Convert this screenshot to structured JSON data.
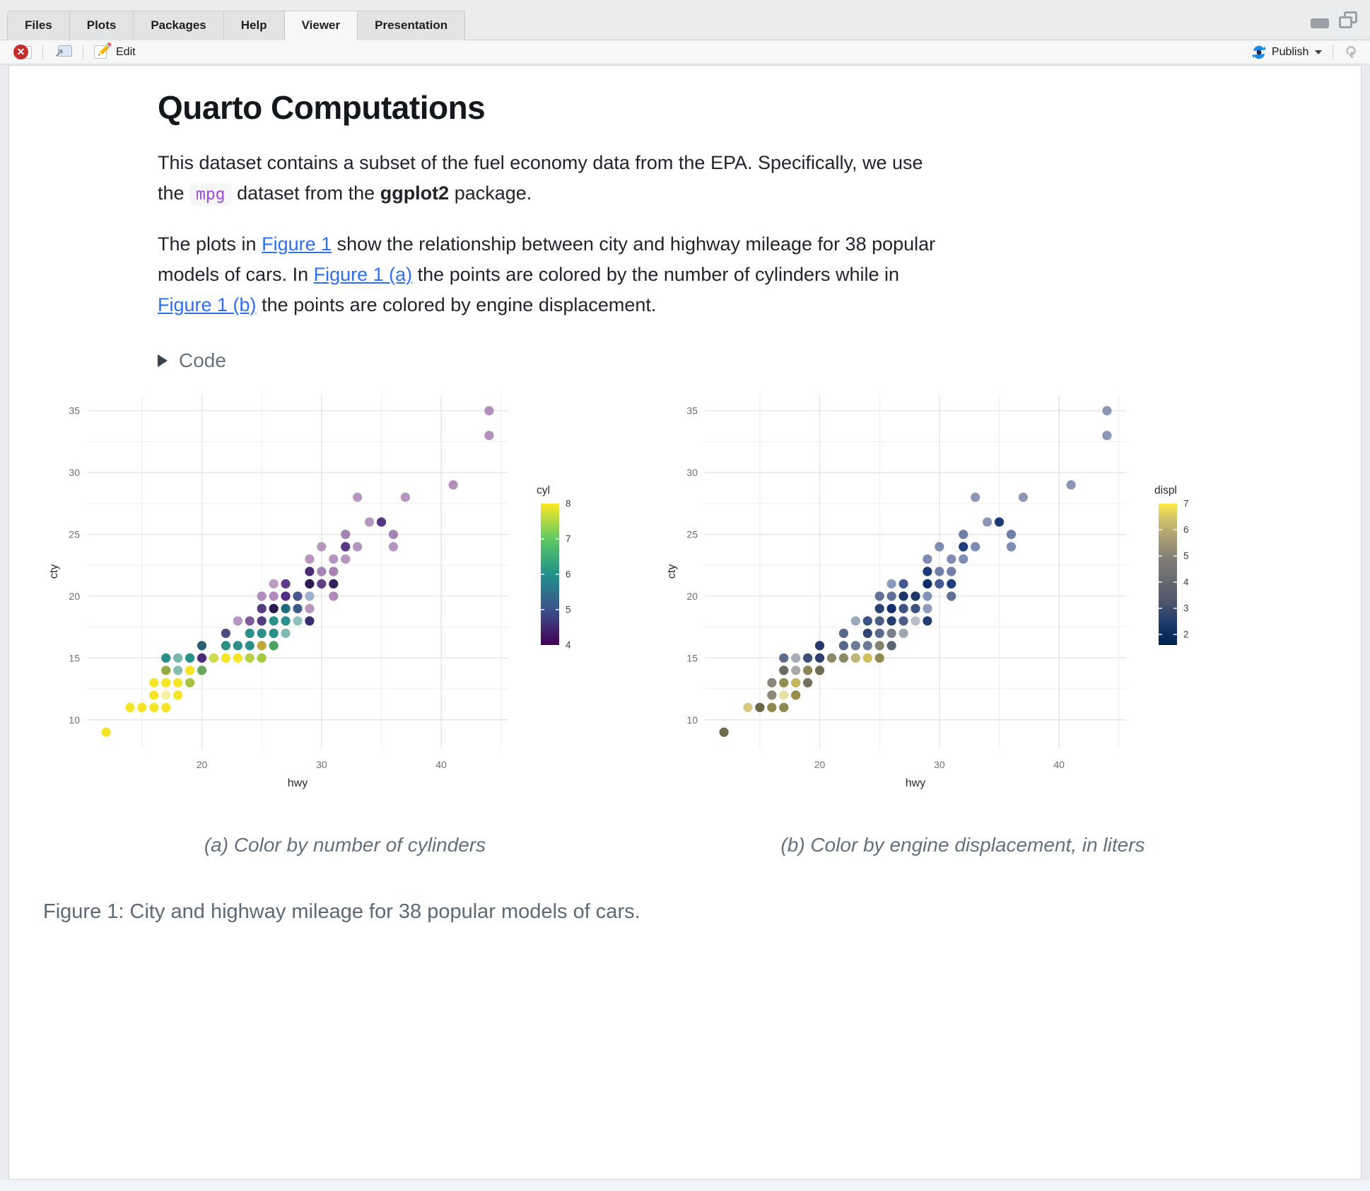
{
  "window": {
    "tabs": [
      {
        "label": "Files"
      },
      {
        "label": "Plots"
      },
      {
        "label": "Packages"
      },
      {
        "label": "Help"
      },
      {
        "label": "Viewer"
      },
      {
        "label": "Presentation"
      }
    ],
    "active_tab": "Viewer",
    "toolbar": {
      "edit_label": "Edit",
      "publish_label": "Publish"
    }
  },
  "document": {
    "title": "Quarto Computations",
    "para1": [
      {
        "t": "This dataset contains a subset of the fuel economy data from the EPA. Specifically, we use the "
      },
      {
        "t": "mpg",
        "s": "code"
      },
      {
        "t": " dataset from the "
      },
      {
        "t": "ggplot2",
        "s": "bold"
      },
      {
        "t": " package."
      }
    ],
    "para2": [
      {
        "t": "The plots in "
      },
      {
        "t": "Figure 1",
        "s": "link"
      },
      {
        "t": " show the relationship between city and highway mileage for 38 popular models of cars. In "
      },
      {
        "t": "Figure 1 (a)",
        "s": "link"
      },
      {
        "t": " the points are colored by the number of cylinders while in "
      },
      {
        "t": "Figure 1 (b)",
        "s": "link"
      },
      {
        "t": " the points are colored by engine displacement."
      }
    ],
    "code_toggle": "Code",
    "caption_a": "(a) Color by number of cylinders",
    "caption_b": "(b) Color by engine displacement, in liters",
    "figure_caption": "Figure 1: City and highway mileage for 38 popular models of cars."
  },
  "chart_data": [
    {
      "type": "scatter",
      "xlabel": "hwy",
      "ylabel": "cty",
      "xlim": [
        10.4,
        45.6
      ],
      "ylim": [
        7.7,
        36.3
      ],
      "x_major": [
        20,
        30,
        40
      ],
      "x_minor": [
        15,
        25,
        35,
        45
      ],
      "y_major": [
        10,
        15,
        20,
        25,
        30,
        35
      ],
      "y_minor": [
        12.5,
        17.5,
        22.5,
        27.5,
        32.5
      ],
      "legend": {
        "title": "cyl",
        "range": [
          4,
          8
        ],
        "ticks": [
          8,
          7,
          6,
          5,
          4
        ],
        "gradient": [
          [
            0,
            "#440154"
          ],
          [
            0.25,
            "#3b528b"
          ],
          [
            0.5,
            "#21918c"
          ],
          [
            0.75,
            "#5ec962"
          ],
          [
            1,
            "#fde725"
          ]
        ]
      },
      "points": [
        [
          12,
          9,
          "#f6e526"
        ],
        [
          14,
          11,
          "#f6e526"
        ],
        [
          15,
          11,
          "#f6e526"
        ],
        [
          16,
          11,
          "#f6e526"
        ],
        [
          17,
          11,
          "#f6e526"
        ],
        [
          16,
          12,
          "#f6e526"
        ],
        [
          17,
          12,
          "#faf0a3"
        ],
        [
          18,
          12,
          "#f6e526"
        ],
        [
          16,
          13,
          "#f6e526"
        ],
        [
          17,
          13,
          "#f6e526"
        ],
        [
          18,
          13,
          "#f6e526"
        ],
        [
          19,
          13,
          "#a8c243"
        ],
        [
          17,
          14,
          "#93ac41"
        ],
        [
          18,
          14,
          "#86bcb2"
        ],
        [
          19,
          14,
          "#f6e526"
        ],
        [
          20,
          14,
          "#6aa85c"
        ],
        [
          17,
          15,
          "#2a9088"
        ],
        [
          18,
          15,
          "#7cb7ae"
        ],
        [
          19,
          15,
          "#2a9088"
        ],
        [
          20,
          15,
          "#4a2c7b"
        ],
        [
          21,
          15,
          "#cdd94e"
        ],
        [
          22,
          15,
          "#f6e526"
        ],
        [
          23,
          15,
          "#f6e526"
        ],
        [
          24,
          15,
          "#b6d046"
        ],
        [
          25,
          15,
          "#a6c943"
        ],
        [
          20,
          16,
          "#2b5f72"
        ],
        [
          22,
          16,
          "#2a9088"
        ],
        [
          23,
          16,
          "#2a9088"
        ],
        [
          24,
          16,
          "#2a9088"
        ],
        [
          25,
          16,
          "#c0a83e"
        ],
        [
          26,
          16,
          "#4aa35e"
        ],
        [
          22,
          17,
          "#4a4e80"
        ],
        [
          24,
          17,
          "#2a9088"
        ],
        [
          25,
          17,
          "#2a9088"
        ],
        [
          26,
          17,
          "#2a9088"
        ],
        [
          27,
          17,
          "#82b9b0"
        ],
        [
          23,
          18,
          "#b696bf"
        ],
        [
          24,
          18,
          "#7d5a9a"
        ],
        [
          25,
          18,
          "#4f3d7e"
        ],
        [
          26,
          18,
          "#2a9088"
        ],
        [
          27,
          18,
          "#2a9088"
        ],
        [
          28,
          18,
          "#8fc2ba"
        ],
        [
          29,
          18,
          "#3a2f6d"
        ],
        [
          25,
          19,
          "#513a80"
        ],
        [
          26,
          19,
          "#2d1a52"
        ],
        [
          27,
          19,
          "#1f6b7c"
        ],
        [
          28,
          19,
          "#3d5a89"
        ],
        [
          29,
          19,
          "#b696bf"
        ],
        [
          25,
          20,
          "#b08cba"
        ],
        [
          26,
          20,
          "#b08cba"
        ],
        [
          27,
          20,
          "#552d80"
        ],
        [
          28,
          20,
          "#48568e"
        ],
        [
          29,
          20,
          "#9fb0cf"
        ],
        [
          31,
          20,
          "#b08cba"
        ],
        [
          26,
          21,
          "#bb9cc4"
        ],
        [
          27,
          21,
          "#5f3d88"
        ],
        [
          29,
          21,
          "#2d1a52"
        ],
        [
          30,
          21,
          "#5f3d88"
        ],
        [
          31,
          21,
          "#33205e"
        ],
        [
          29,
          22,
          "#4a2d75"
        ],
        [
          30,
          22,
          "#a584b3"
        ],
        [
          31,
          22,
          "#a584b3"
        ],
        [
          29,
          23,
          "#b696bf"
        ],
        [
          31,
          23,
          "#b696bf"
        ],
        [
          32,
          23,
          "#b696bf"
        ],
        [
          30,
          24,
          "#b696bf"
        ],
        [
          32,
          24,
          "#5b3a85"
        ],
        [
          33,
          24,
          "#b696bf"
        ],
        [
          36,
          24,
          "#b696bf"
        ],
        [
          32,
          25,
          "#a584b3"
        ],
        [
          36,
          25,
          "#a584b3"
        ],
        [
          34,
          26,
          "#b696bf"
        ],
        [
          35,
          26,
          "#563482"
        ],
        [
          33,
          28,
          "#b696bf"
        ],
        [
          37,
          28,
          "#b696bf"
        ],
        [
          41,
          29,
          "#b28fbc"
        ],
        [
          44,
          33,
          "#b28fbc"
        ],
        [
          44,
          35,
          "#b28fbc"
        ]
      ]
    },
    {
      "type": "scatter",
      "xlabel": "hwy",
      "ylabel": "cty",
      "xlim": [
        10.4,
        45.6
      ],
      "ylim": [
        7.7,
        36.3
      ],
      "x_major": [
        20,
        30,
        40
      ],
      "x_minor": [
        15,
        25,
        35,
        45
      ],
      "y_major": [
        10,
        15,
        20,
        25,
        30,
        35
      ],
      "y_minor": [
        12.5,
        17.5,
        22.5,
        27.5,
        32.5
      ],
      "legend": {
        "title": "displ",
        "range": [
          1.6,
          7
        ],
        "ticks": [
          7,
          6,
          5,
          4,
          3,
          2
        ],
        "gradient": [
          [
            0,
            "#00204d"
          ],
          [
            0.15,
            "#1b3a6d"
          ],
          [
            0.3,
            "#4c556b"
          ],
          [
            0.45,
            "#666970"
          ],
          [
            0.6,
            "#7f7c75"
          ],
          [
            0.75,
            "#a69d75"
          ],
          [
            0.9,
            "#d3c368"
          ],
          [
            1,
            "#ffea46"
          ]
        ]
      },
      "points": [
        [
          12,
          9,
          "#6e6a4a"
        ],
        [
          14,
          11,
          "#d6ca82"
        ],
        [
          15,
          11,
          "#6b6747"
        ],
        [
          16,
          11,
          "#8f884f"
        ],
        [
          17,
          11,
          "#8f884f"
        ],
        [
          16,
          12,
          "#8c8a77"
        ],
        [
          17,
          12,
          "#eadfa4"
        ],
        [
          18,
          12,
          "#968e4e"
        ],
        [
          16,
          13,
          "#8b897b"
        ],
        [
          17,
          13,
          "#948c51"
        ],
        [
          18,
          13,
          "#c3b55e"
        ],
        [
          19,
          13,
          "#73705d"
        ],
        [
          17,
          14,
          "#6c6a5e"
        ],
        [
          18,
          14,
          "#a7a9a6"
        ],
        [
          19,
          14,
          "#8a8457"
        ],
        [
          20,
          14,
          "#6f6c52"
        ],
        [
          17,
          15,
          "#5d6d89"
        ],
        [
          18,
          15,
          "#a8aeb7"
        ],
        [
          19,
          15,
          "#3d4e78"
        ],
        [
          20,
          15,
          "#2c3f6b"
        ],
        [
          21,
          15,
          "#8d8a67"
        ],
        [
          22,
          15,
          "#8d8a67"
        ],
        [
          23,
          15,
          "#bfb677"
        ],
        [
          24,
          15,
          "#cfc25e"
        ],
        [
          25,
          15,
          "#918a50"
        ],
        [
          20,
          16,
          "#24386b"
        ],
        [
          22,
          16,
          "#57678c"
        ],
        [
          23,
          16,
          "#6c7a94"
        ],
        [
          24,
          16,
          "#6c7a94"
        ],
        [
          25,
          16,
          "#83836f"
        ],
        [
          26,
          16,
          "#5b6475"
        ],
        [
          22,
          17,
          "#5a6a8a"
        ],
        [
          24,
          17,
          "#2e4571"
        ],
        [
          25,
          17,
          "#5a6a8a"
        ],
        [
          26,
          17,
          "#787f8d"
        ],
        [
          27,
          17,
          "#9fa6ad"
        ],
        [
          23,
          18,
          "#9ba7bb"
        ],
        [
          24,
          18,
          "#3b5283"
        ],
        [
          25,
          18,
          "#4c5d86"
        ],
        [
          26,
          18,
          "#253e72"
        ],
        [
          27,
          18,
          "#4c5d86"
        ],
        [
          28,
          18,
          "#b9bec5"
        ],
        [
          29,
          18,
          "#253e72"
        ],
        [
          25,
          19,
          "#2c4272"
        ],
        [
          26,
          19,
          "#14306b"
        ],
        [
          27,
          19,
          "#3d5280"
        ],
        [
          28,
          19,
          "#3d5280"
        ],
        [
          29,
          19,
          "#8f9dba"
        ],
        [
          25,
          20,
          "#63719a"
        ],
        [
          26,
          20,
          "#63719a"
        ],
        [
          27,
          20,
          "#1d3569"
        ],
        [
          28,
          20,
          "#1d3569"
        ],
        [
          29,
          20,
          "#8493b5"
        ],
        [
          31,
          20,
          "#63719a"
        ],
        [
          26,
          21,
          "#8b99c0"
        ],
        [
          27,
          21,
          "#455a92"
        ],
        [
          29,
          21,
          "#0f2d68"
        ],
        [
          30,
          21,
          "#455a92"
        ],
        [
          31,
          21,
          "#1e3d7e"
        ],
        [
          29,
          22,
          "#1c3c77"
        ],
        [
          30,
          22,
          "#6f7ea6"
        ],
        [
          31,
          22,
          "#6f7ea6"
        ],
        [
          29,
          23,
          "#7d8cb0"
        ],
        [
          31,
          23,
          "#7d8cb0"
        ],
        [
          32,
          23,
          "#7d8cb0"
        ],
        [
          30,
          24,
          "#7d8cb0"
        ],
        [
          32,
          24,
          "#1e3f80"
        ],
        [
          33,
          24,
          "#7d8cb0"
        ],
        [
          36,
          24,
          "#7d8cb0"
        ],
        [
          32,
          25,
          "#6f80a8"
        ],
        [
          36,
          25,
          "#6f80a8"
        ],
        [
          34,
          26,
          "#8b97b5"
        ],
        [
          35,
          26,
          "#1c3c77"
        ],
        [
          33,
          28,
          "#8b97b5"
        ],
        [
          37,
          28,
          "#8b97b5"
        ],
        [
          41,
          29,
          "#8b97b5"
        ],
        [
          44,
          33,
          "#8b97b5"
        ],
        [
          44,
          35,
          "#8b97b5"
        ]
      ]
    }
  ],
  "colors": {
    "accent_blue": "#2e6ff2",
    "code_purple": "#9d4be0",
    "publish_blue": "#1e88e5"
  }
}
